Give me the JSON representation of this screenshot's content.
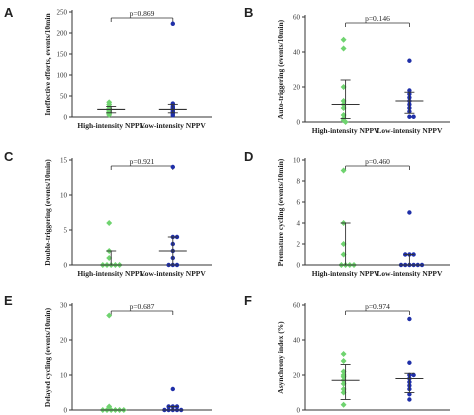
{
  "chart_data": [
    {
      "type": "scatter",
      "panel": "A",
      "ylabel": "Ineffective efforts, events/10min",
      "ylim": [
        0,
        250
      ],
      "yticks": [
        0,
        50,
        100,
        150,
        200,
        250
      ],
      "categories": [
        "High-intensity NPPV",
        "Low-intensity NPPV"
      ],
      "p_label": "p=0.869",
      "series": [
        {
          "values": [
            5,
            8,
            10,
            12,
            15,
            18,
            20,
            25,
            30,
            35
          ],
          "color": "#6fd36f",
          "median": 18,
          "iqr": [
            10,
            25
          ]
        },
        {
          "values": [
            4,
            8,
            12,
            15,
            20,
            22,
            25,
            30,
            32,
            222
          ],
          "color": "#1f2fa8",
          "median": 18,
          "iqr": [
            10,
            30
          ]
        }
      ]
    },
    {
      "type": "scatter",
      "panel": "B",
      "ylabel": "Auto-triggering (events/10min)",
      "ylim": [
        0,
        60
      ],
      "yticks": [
        0,
        20,
        40,
        60
      ],
      "categories": [
        "High-intensity NPPV",
        "Low-intensity NPPV"
      ],
      "p_label": "p=0.146",
      "series": [
        {
          "values": [
            0,
            1,
            2,
            4,
            8,
            10,
            12,
            20,
            42,
            47
          ],
          "color": "#6fd36f",
          "median": 10,
          "iqr": [
            2,
            24
          ]
        },
        {
          "values": [
            3,
            3,
            6,
            8,
            10,
            12,
            14,
            16,
            18,
            35
          ],
          "color": "#1f2fa8",
          "median": 12,
          "iqr": [
            5,
            17
          ]
        }
      ]
    },
    {
      "type": "scatter",
      "panel": "C",
      "ylabel": "Double-triggering (events/10min)",
      "ylim": [
        0,
        15
      ],
      "yticks": [
        0,
        5,
        10,
        15
      ],
      "categories": [
        "High-intensity NPPV",
        "Low-intensity NPPV"
      ],
      "p_label": "p=0.921",
      "series": [
        {
          "values": [
            0,
            0,
            0,
            0,
            0,
            1,
            2,
            6
          ],
          "color": "#6fd36f",
          "median": 0,
          "iqr": [
            0,
            2
          ]
        },
        {
          "values": [
            0,
            0,
            0,
            1,
            2,
            3,
            4,
            4,
            14
          ],
          "color": "#1f2fa8",
          "median": 2,
          "iqr": [
            0,
            4
          ]
        }
      ]
    },
    {
      "type": "scatter",
      "panel": "D",
      "ylabel": "Premature cycling (events/10min)",
      "ylim": [
        0,
        10
      ],
      "yticks": [
        0,
        2,
        4,
        6,
        8,
        10
      ],
      "categories": [
        "High-intensity NPPV",
        "Low-intensity NPPV"
      ],
      "p_label": "p=0.460",
      "series": [
        {
          "values": [
            0,
            0,
            0,
            0,
            1,
            2,
            4,
            9
          ],
          "color": "#6fd36f",
          "median": 0,
          "iqr": [
            0,
            4
          ]
        },
        {
          "values": [
            0,
            0,
            0,
            0,
            0,
            0,
            1,
            1,
            1,
            5
          ],
          "color": "#1f2fa8",
          "median": 0,
          "iqr": [
            0,
            1
          ]
        }
      ]
    },
    {
      "type": "scatter",
      "panel": "E",
      "ylabel": "Delayed cycling (events/10min)",
      "ylim": [
        0,
        30
      ],
      "yticks": [
        0,
        10,
        20,
        30
      ],
      "categories": [
        "High-intensity NPPV",
        "Low-intensity NPPV"
      ],
      "p_label": "p=0.687",
      "series": [
        {
          "values": [
            0,
            0,
            0,
            0,
            0,
            0,
            1,
            27
          ],
          "color": "#6fd36f",
          "median": 0,
          "iqr": [
            0,
            0
          ]
        },
        {
          "values": [
            0,
            0,
            0,
            0,
            0,
            1,
            1,
            1,
            6
          ],
          "color": "#1f2fa8",
          "median": 0,
          "iqr": [
            0,
            1
          ]
        }
      ]
    },
    {
      "type": "scatter",
      "panel": "F",
      "ylabel": "Asynchrony index (%)",
      "ylim": [
        0,
        60
      ],
      "yticks": [
        0,
        20,
        40,
        60
      ],
      "categories": [
        "High-intensity NPPV",
        "Low-intensity NPPV"
      ],
      "p_label": "p=0.974",
      "series": [
        {
          "values": [
            3,
            10,
            12,
            15,
            17,
            19,
            20,
            22,
            28,
            32
          ],
          "color": "#6fd36f",
          "median": 17,
          "iqr": [
            6,
            26
          ]
        },
        {
          "values": [
            6,
            9,
            12,
            14,
            16,
            18,
            20,
            20,
            27,
            52
          ],
          "color": "#1f2fa8",
          "median": 18,
          "iqr": [
            10,
            21
          ]
        }
      ]
    }
  ]
}
